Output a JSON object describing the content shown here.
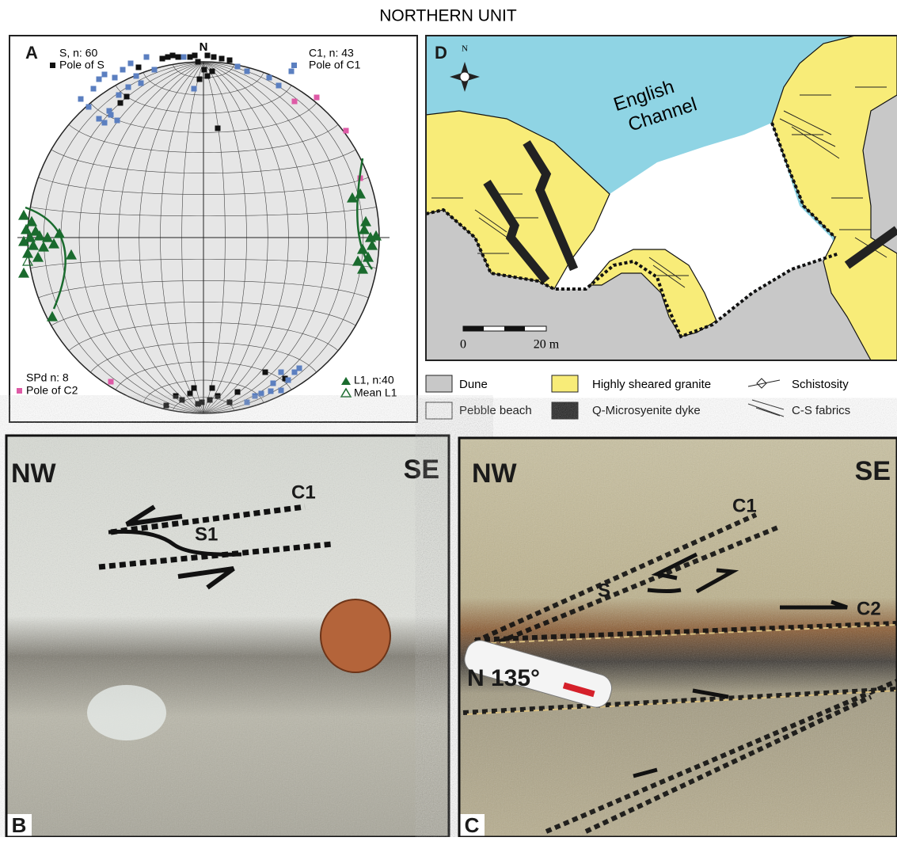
{
  "title": "NORTHERN UNIT",
  "panel_a": {
    "label": "A",
    "north": "N",
    "legend": [
      {
        "heading": "S, n: 60",
        "symbol_label": "Pole of S"
      },
      {
        "heading": "C1, n: 43",
        "symbol_label": "Pole of C1"
      },
      {
        "heading": "SPd n: 8",
        "symbol_label": "Pole of C2"
      },
      {
        "heading": "L1, n:40",
        "symbol_label": "Mean L1"
      }
    ]
  },
  "panel_d": {
    "label": "D",
    "compass": "N",
    "sea_label_lines": [
      "English",
      "Channel"
    ],
    "scale": [
      "0",
      "20 m"
    ],
    "legend": [
      "Dune",
      "Highly sheared granite",
      "Schistosity",
      "Pebble beach",
      "Q-Microsyenite dyke",
      "C-S fabrics"
    ]
  },
  "panel_b": {
    "label": "B",
    "left": "NW",
    "right": "SE",
    "annotations": [
      "C1",
      "S1"
    ]
  },
  "panel_c": {
    "label": "C",
    "left": "NW",
    "right": "SE",
    "annotations": [
      "C1",
      "S",
      "C2"
    ],
    "pen": "N 135°"
  }
}
